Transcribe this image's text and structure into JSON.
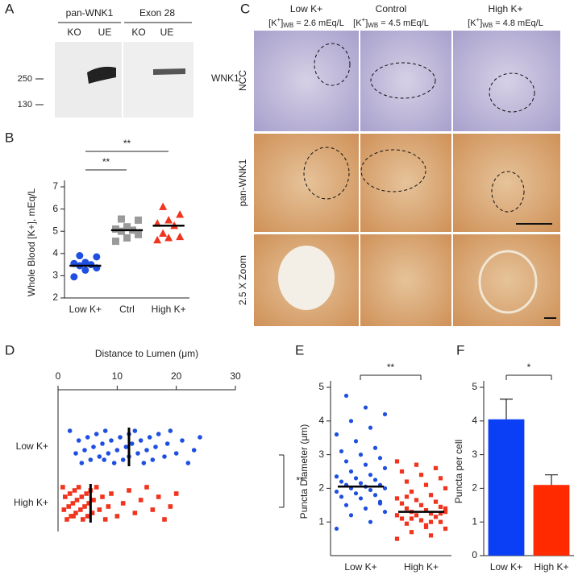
{
  "panel_labels": [
    "A",
    "B",
    "C",
    "D",
    "E",
    "F"
  ],
  "blot": {
    "groups": [
      {
        "title": "pan-WNK1",
        "lanes": [
          "KO",
          "UE"
        ]
      },
      {
        "title": "Exon 28",
        "lanes": [
          "KO",
          "UE"
        ]
      }
    ],
    "band_label": "WNK1",
    "markers": [
      "250",
      "130"
    ]
  },
  "micrographs": {
    "columns": [
      {
        "title": "Low K+",
        "pre": "[K",
        "sup": "+",
        "close": "]",
        "sub": "WB",
        "value": " = 2.6 mEq/L"
      },
      {
        "title": "Control",
        "pre": "[K",
        "sup": "+",
        "close": "]",
        "sub": "WB",
        "value": " = 4.5 mEq/L"
      },
      {
        "title": "High K+",
        "pre": "[K",
        "sup": "+",
        "close": "]",
        "sub": "WB",
        "value": " = 4.8 mEq/L"
      }
    ],
    "rows": [
      "NCC",
      "pan-WNK1",
      "2.5 X Zoom"
    ]
  },
  "chart_data": [
    {
      "type": "strip",
      "y_label": "Whole Blood [K+], mEq/L",
      "ylim": [
        2,
        7
      ],
      "yticks": [
        2,
        3,
        4,
        5,
        6,
        7
      ],
      "groups": [
        {
          "name": "Low K+",
          "color": "#1f4fe0",
          "marker": "circle",
          "values": [
            2.95,
            3.25,
            3.35,
            3.45,
            3.5,
            3.55,
            3.6,
            3.85,
            3.9
          ],
          "mean": 3.45
        },
        {
          "name": "Ctrl",
          "color": "#9a9a9a",
          "marker": "square",
          "values": [
            4.55,
            4.7,
            4.85,
            5.0,
            5.05,
            5.1,
            5.2,
            5.5,
            5.55
          ],
          "mean": 5.05
        },
        {
          "name": "High K+",
          "color": "#f0341e",
          "marker": "triangle",
          "values": [
            4.6,
            4.7,
            4.75,
            4.9,
            5.25,
            5.35,
            5.5,
            5.75,
            6.1
          ],
          "mean": 5.25
        }
      ],
      "significance": [
        "**",
        "**"
      ]
    },
    {
      "type": "strip",
      "orientation": "horizontal",
      "x_label": "Distance to Lumen (μm)",
      "xlim": [
        0,
        30
      ],
      "xticks": [
        0,
        10,
        20,
        30
      ],
      "groups": [
        {
          "name": "Low K+",
          "color": "#1f4fe0",
          "marker": "circle",
          "values": [
            2,
            3,
            3.5,
            4,
            4.5,
            5,
            5.5,
            6,
            6.5,
            7,
            7.5,
            8,
            8.5,
            9,
            9.5,
            10,
            10.5,
            11,
            11.5,
            12,
            12,
            12.5,
            13,
            13.5,
            14,
            14.5,
            15,
            15.5,
            16,
            16.5,
            17,
            18,
            18.5,
            19,
            20,
            21,
            22,
            23,
            24,
            7.8
          ],
          "mean": 12
        },
        {
          "name": "High K+",
          "color": "#f0341e",
          "marker": "square",
          "values": [
            0.8,
            1,
            1.2,
            1.5,
            1.8,
            2,
            2.2,
            2.5,
            2.8,
            3,
            3.2,
            3.5,
            3.8,
            4,
            4.2,
            4.5,
            4.8,
            5,
            5.2,
            5.5,
            5.8,
            6,
            6.5,
            7,
            7.5,
            8,
            8.5,
            9,
            10,
            11,
            12,
            13,
            14,
            15,
            16,
            17,
            18,
            19,
            20,
            2.6
          ],
          "mean": 5.5
        }
      ],
      "significance": [
        "**"
      ]
    },
    {
      "type": "strip",
      "y_label": "Puncta Diameter (μm)",
      "ylim": [
        0,
        5
      ],
      "yticks": [
        1,
        2,
        3,
        4,
        5
      ],
      "groups": [
        {
          "name": "Low K+",
          "color": "#1f4fe0",
          "marker": "circle",
          "values": [
            0.8,
            1.0,
            1.2,
            1.3,
            1.4,
            1.5,
            1.6,
            1.7,
            1.75,
            1.8,
            1.85,
            1.9,
            1.95,
            2.0,
            2.0,
            2.05,
            2.1,
            2.1,
            2.15,
            2.2,
            2.25,
            2.3,
            2.35,
            2.4,
            2.5,
            2.6,
            2.7,
            2.8,
            2.9,
            3.0,
            3.1,
            3.2,
            3.4,
            3.6,
            3.8,
            4.0,
            4.2,
            4.4,
            4.75,
            1.55
          ],
          "mean": 2.05
        },
        {
          "name": "High K+",
          "color": "#f0341e",
          "marker": "square",
          "values": [
            0.5,
            0.6,
            0.7,
            0.8,
            0.9,
            0.95,
            1.0,
            1.05,
            1.1,
            1.15,
            1.2,
            1.2,
            1.25,
            1.3,
            1.3,
            1.35,
            1.4,
            1.45,
            1.5,
            1.55,
            1.6,
            1.65,
            1.7,
            1.8,
            1.9,
            2.0,
            2.1,
            2.2,
            2.3,
            2.4,
            2.5,
            2.6,
            2.7,
            2.8,
            1.0,
            1.1,
            1.4,
            0.85,
            1.75,
            1.25
          ],
          "mean": 1.3
        }
      ],
      "significance": [
        "**"
      ]
    },
    {
      "type": "bar",
      "y_label": "Puncta per cell",
      "ylim": [
        0,
        5
      ],
      "yticks": [
        0,
        1,
        2,
        3,
        4,
        5
      ],
      "categories": [
        "Low K+",
        "High K+"
      ],
      "values": [
        4.05,
        2.1
      ],
      "errors": [
        0.6,
        0.3
      ],
      "colors": [
        "#0b3ff5",
        "#ff2a00"
      ],
      "significance": [
        "*"
      ]
    }
  ]
}
